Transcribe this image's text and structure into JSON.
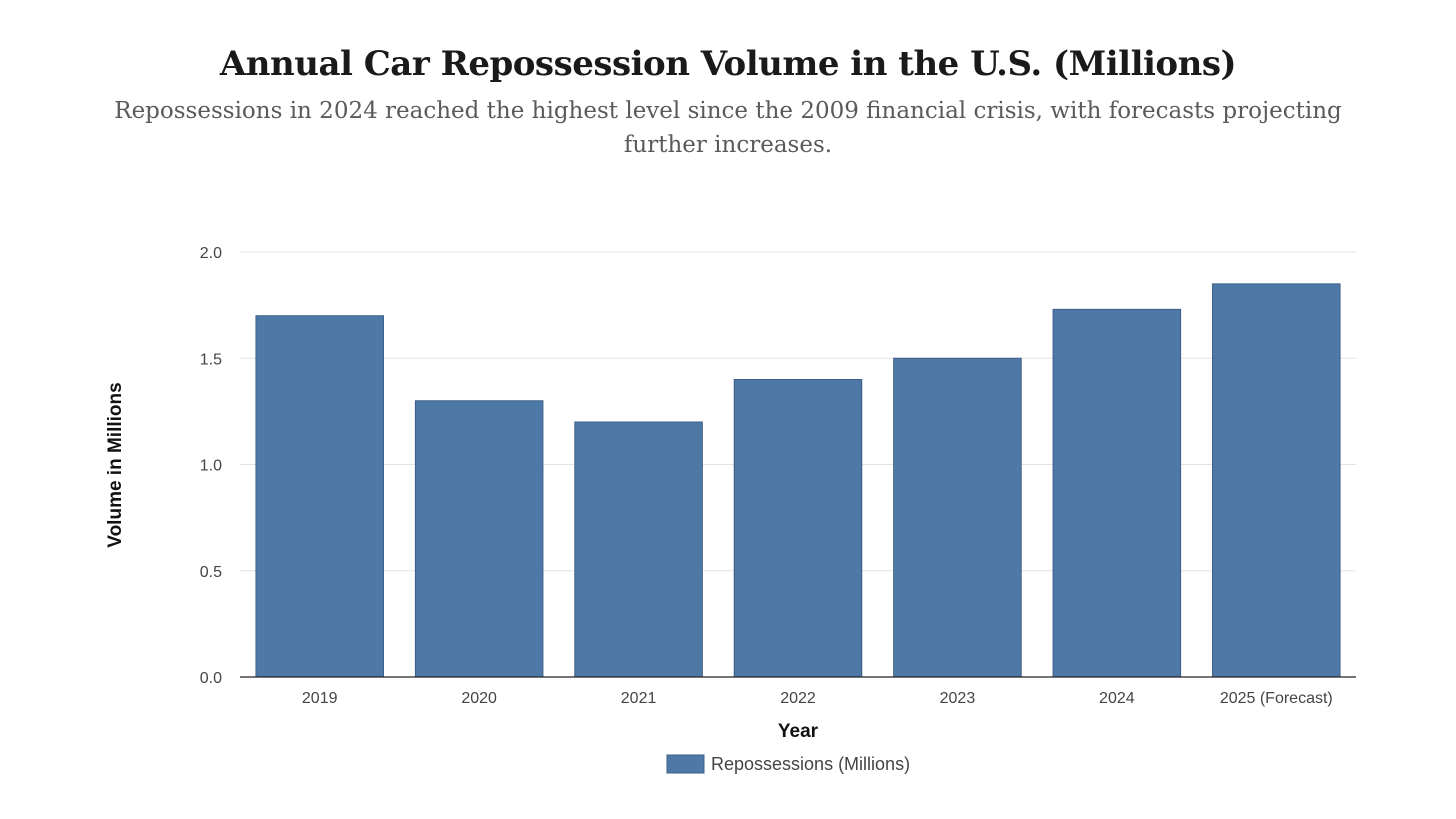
{
  "chart_data": {
    "type": "bar",
    "title": "Annual Car Repossession Volume in the U.S. (Millions)",
    "subtitle": "Repossessions in 2024 reached the highest level since the 2009 financial crisis, with forecasts projecting further increases.",
    "categories": [
      "2019",
      "2020",
      "2021",
      "2022",
      "2023",
      "2024",
      "2025 (Forecast)"
    ],
    "series": [
      {
        "name": "Repossessions (Millions)",
        "values": [
          1.7,
          1.3,
          1.2,
          1.4,
          1.5,
          1.73,
          1.85
        ],
        "color": "#4e79a7"
      }
    ],
    "xlabel": "Year",
    "ylabel": "Volume in Millions",
    "ylim": [
      0,
      2.0
    ],
    "yticks": [
      "0.0",
      "0.5",
      "1.0",
      "1.5",
      "2.0"
    ],
    "grid": true,
    "legend_position": "bottom"
  }
}
